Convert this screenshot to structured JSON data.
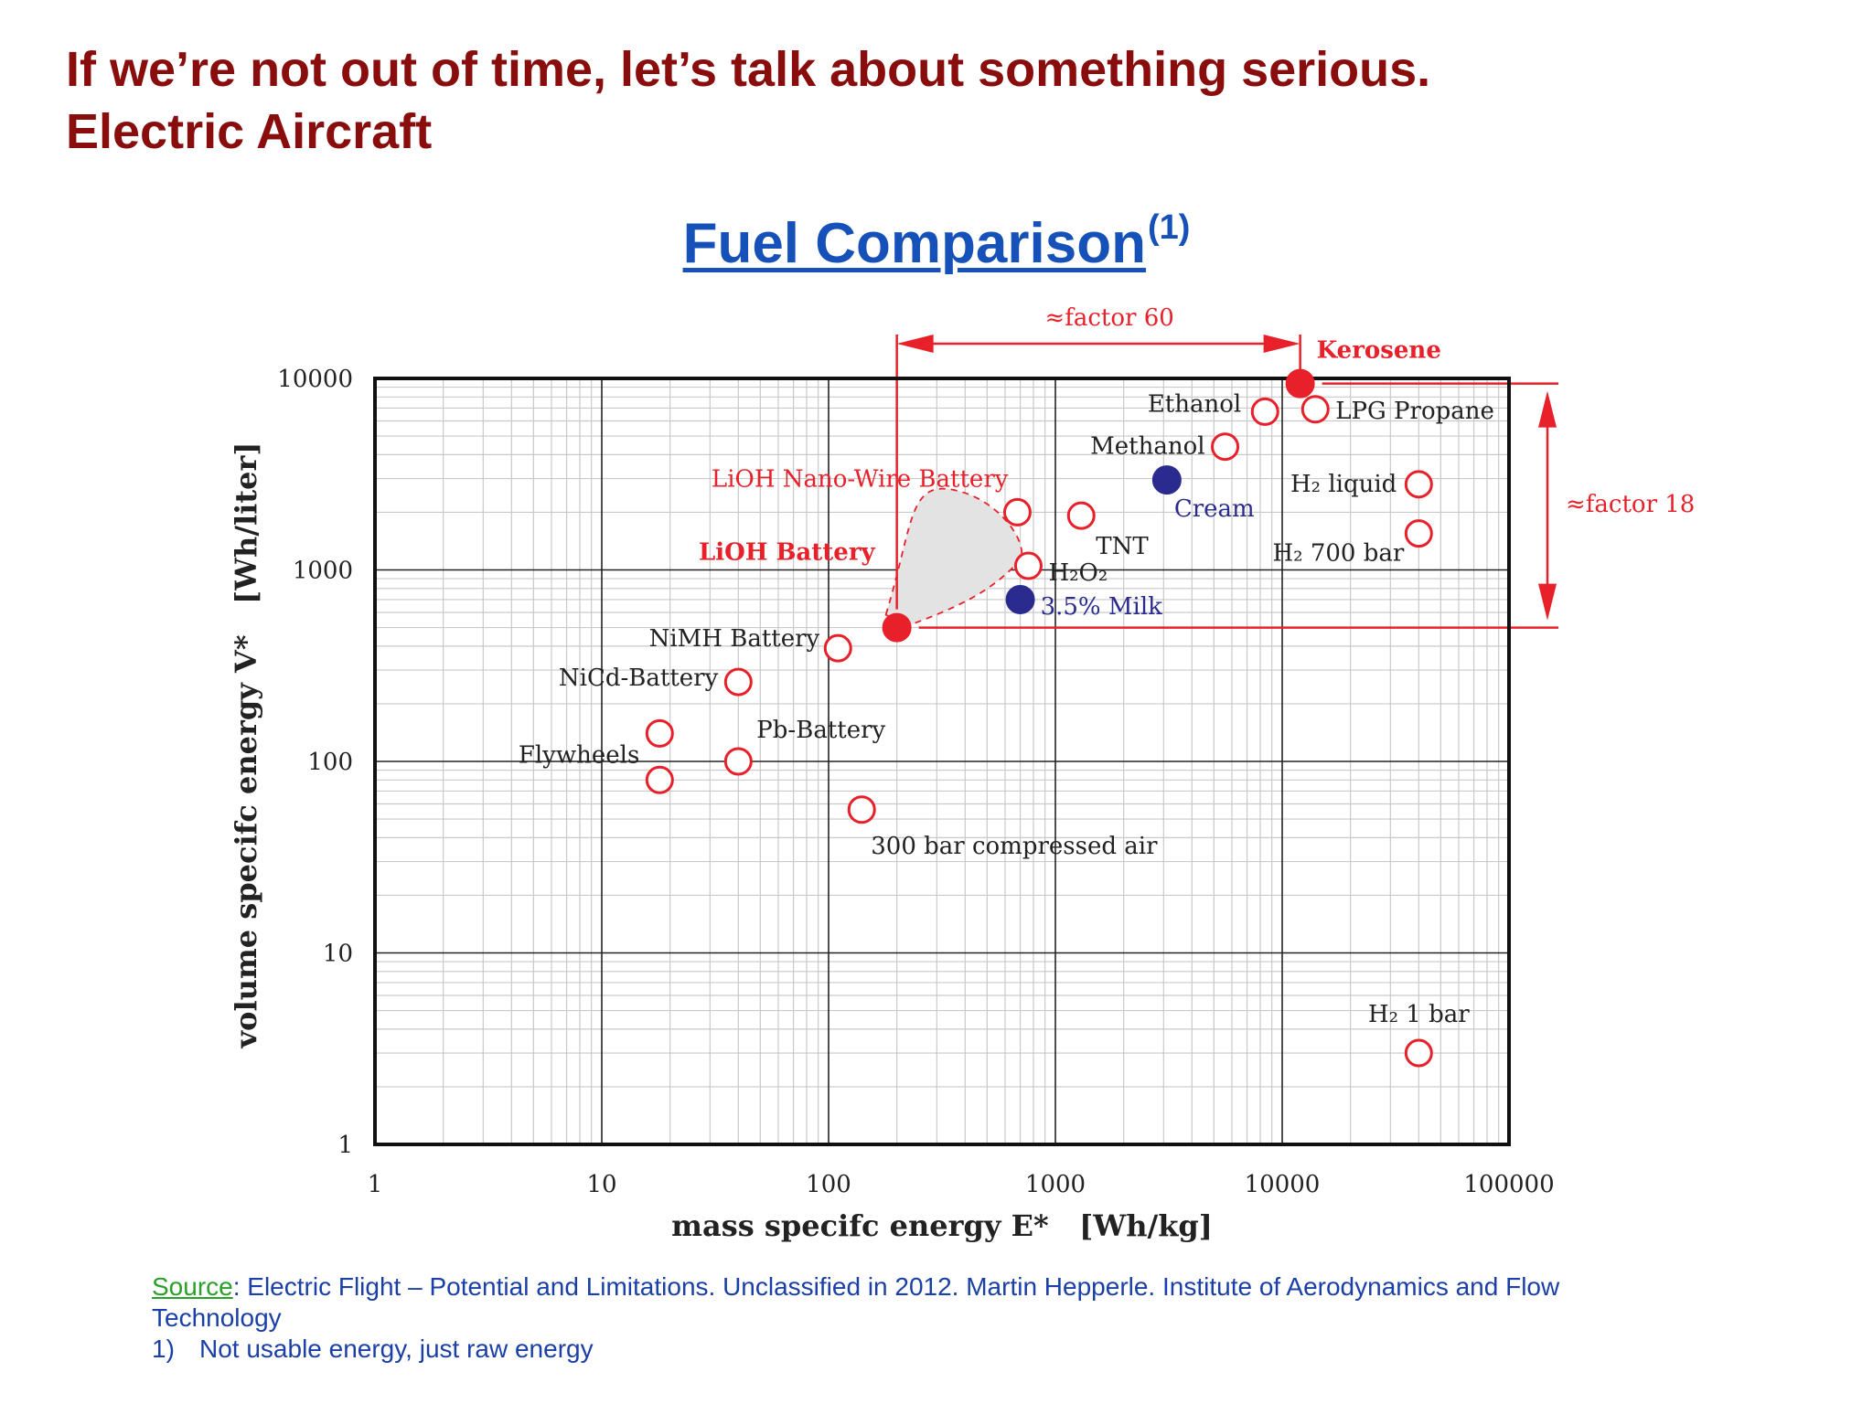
{
  "heading": {
    "line1": "If we’re not out of time, let’s talk about something serious.",
    "line2": "Electric Aircraft"
  },
  "chart_data": {
    "type": "scatter",
    "title": "Fuel Comparison",
    "title_superscript": "(1)",
    "xlabel": "mass specifc energy E*   [Wh/kg]",
    "ylabel": "volume specifc energy V*   [Wh/liter]",
    "x_scale": "log",
    "y_scale": "log",
    "xlim": [
      1,
      100000
    ],
    "ylim": [
      1,
      10000
    ],
    "x_ticks": [
      "1",
      "10",
      "100",
      "1000",
      "10000",
      "100000"
    ],
    "y_ticks": [
      "1",
      "10",
      "100",
      "1000",
      "10000"
    ],
    "grid": true,
    "colors": {
      "red": "#e8202a",
      "blue": "#2b2b8f",
      "region": "#e3e3e3"
    },
    "points": [
      {
        "label": "Kerosene",
        "x": 12000,
        "y": 9400,
        "style": "filled-red"
      },
      {
        "label": "LPG Propane",
        "x": 14000,
        "y": 6900,
        "style": "open-red"
      },
      {
        "label": "Ethanol",
        "x": 8400,
        "y": 6700,
        "style": "open-red"
      },
      {
        "label": "Methanol",
        "x": 5600,
        "y": 4400,
        "style": "open-red"
      },
      {
        "label": "Cream",
        "x": 3100,
        "y": 2950,
        "style": "filled-blue"
      },
      {
        "label": "H₂ liquid",
        "x": 40000,
        "y": 2800,
        "style": "open-red"
      },
      {
        "label": "H₂ 700 bar",
        "x": 40000,
        "y": 1550,
        "style": "open-red"
      },
      {
        "label": "TNT",
        "x": 1300,
        "y": 1920,
        "style": "open-red"
      },
      {
        "label": "LiOH Nano-Wire Battery",
        "x": 680,
        "y": 2000,
        "style": "open-red"
      },
      {
        "label": "H₂O₂",
        "x": 760,
        "y": 1050,
        "style": "open-red"
      },
      {
        "label": "3.5% Milk",
        "x": 700,
        "y": 700,
        "style": "filled-blue"
      },
      {
        "label": "LiOH Battery",
        "x": 200,
        "y": 500,
        "style": "filled-red"
      },
      {
        "label": "NiMH Battery",
        "x": 110,
        "y": 390,
        "style": "open-red"
      },
      {
        "label": "NiCd-Battery",
        "x": 40,
        "y": 260,
        "style": "open-red"
      },
      {
        "label": "Pb-Battery",
        "x": 40,
        "y": 100,
        "style": "open-red"
      },
      {
        "label": "Flywheels",
        "x": 18,
        "y": 140,
        "style": "open-red"
      },
      {
        "label": "Flywheels",
        "x": 18,
        "y": 80,
        "style": "open-red"
      },
      {
        "label": "300 bar compressed air",
        "x": 140,
        "y": 56,
        "style": "open-red"
      },
      {
        "label": "H₂ 1 bar",
        "x": 40000,
        "y": 3,
        "style": "open-red"
      }
    ],
    "annotations": {
      "factor_horizontal": "≈factor 60",
      "factor_vertical": "≈factor 18"
    }
  },
  "footer": {
    "source_label": "Source",
    "source_text": ":  Electric Flight – Potential and Limitations. Unclassified in 2012. Martin Hepperle. Institute of Aerodynamics and Flow Technology",
    "note_number": "1)",
    "note_text": "Not usable energy, just raw energy"
  }
}
